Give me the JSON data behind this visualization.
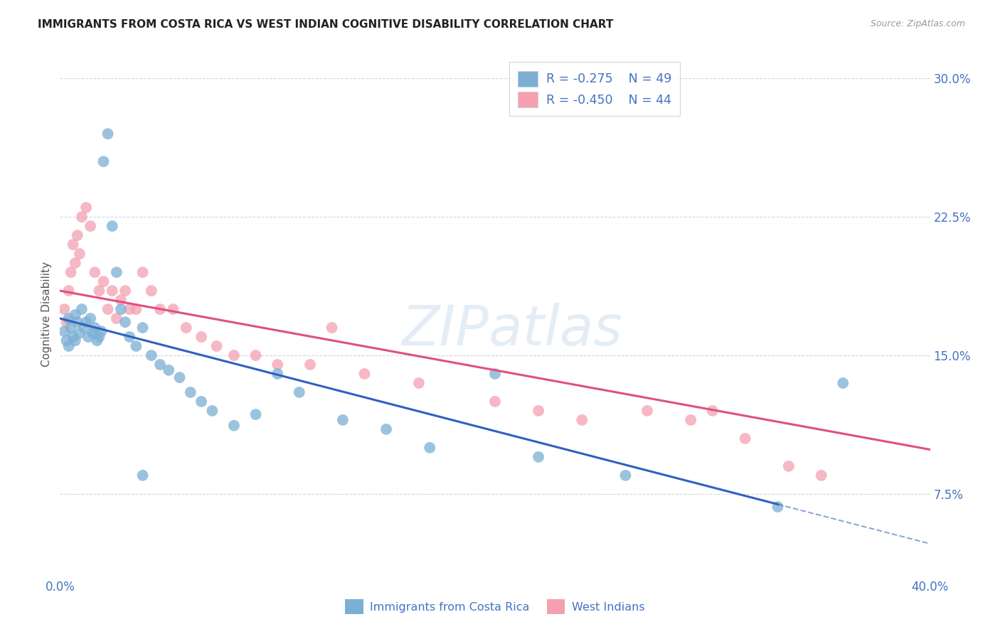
{
  "title": "IMMIGRANTS FROM COSTA RICA VS WEST INDIAN COGNITIVE DISABILITY CORRELATION CHART",
  "source": "Source: ZipAtlas.com",
  "ylabel": "Cognitive Disability",
  "xlim": [
    0.0,
    0.4
  ],
  "ylim": [
    0.03,
    0.315
  ],
  "yticks": [
    0.075,
    0.15,
    0.225,
    0.3
  ],
  "ytick_labels": [
    "7.5%",
    "15.0%",
    "22.5%",
    "30.0%"
  ],
  "xticks": [
    0.0,
    0.1,
    0.2,
    0.3,
    0.4
  ],
  "xtick_labels": [
    "0.0%",
    "",
    "",
    "",
    "40.0%"
  ],
  "legend_r_blue": "-0.275",
  "legend_n_blue": "49",
  "legend_r_pink": "-0.450",
  "legend_n_pink": "44",
  "blue_color": "#7bafd4",
  "pink_color": "#f4a0b0",
  "line_blue": "#3060c0",
  "line_pink": "#e05080",
  "blue_scatter_x": [
    0.002,
    0.003,
    0.004,
    0.004,
    0.005,
    0.006,
    0.007,
    0.007,
    0.008,
    0.009,
    0.01,
    0.011,
    0.012,
    0.013,
    0.014,
    0.015,
    0.016,
    0.017,
    0.018,
    0.019,
    0.02,
    0.022,
    0.024,
    0.026,
    0.028,
    0.03,
    0.032,
    0.035,
    0.038,
    0.042,
    0.046,
    0.05,
    0.055,
    0.06,
    0.065,
    0.07,
    0.08,
    0.09,
    0.1,
    0.11,
    0.13,
    0.15,
    0.17,
    0.2,
    0.22,
    0.26,
    0.33,
    0.36,
    0.038
  ],
  "blue_scatter_y": [
    0.163,
    0.158,
    0.17,
    0.155,
    0.165,
    0.16,
    0.172,
    0.158,
    0.168,
    0.162,
    0.175,
    0.165,
    0.168,
    0.16,
    0.17,
    0.162,
    0.165,
    0.158,
    0.16,
    0.163,
    0.255,
    0.27,
    0.22,
    0.195,
    0.175,
    0.168,
    0.16,
    0.155,
    0.165,
    0.15,
    0.145,
    0.142,
    0.138,
    0.13,
    0.125,
    0.12,
    0.112,
    0.118,
    0.14,
    0.13,
    0.115,
    0.11,
    0.1,
    0.14,
    0.095,
    0.085,
    0.068,
    0.135,
    0.085
  ],
  "pink_scatter_x": [
    0.002,
    0.003,
    0.004,
    0.005,
    0.006,
    0.007,
    0.008,
    0.009,
    0.01,
    0.012,
    0.014,
    0.016,
    0.018,
    0.02,
    0.022,
    0.024,
    0.026,
    0.028,
    0.03,
    0.032,
    0.035,
    0.038,
    0.042,
    0.046,
    0.052,
    0.058,
    0.065,
    0.072,
    0.08,
    0.09,
    0.1,
    0.115,
    0.125,
    0.14,
    0.165,
    0.2,
    0.22,
    0.24,
    0.27,
    0.29,
    0.3,
    0.315,
    0.335,
    0.35
  ],
  "pink_scatter_y": [
    0.175,
    0.168,
    0.185,
    0.195,
    0.21,
    0.2,
    0.215,
    0.205,
    0.225,
    0.23,
    0.22,
    0.195,
    0.185,
    0.19,
    0.175,
    0.185,
    0.17,
    0.18,
    0.185,
    0.175,
    0.175,
    0.195,
    0.185,
    0.175,
    0.175,
    0.165,
    0.16,
    0.155,
    0.15,
    0.15,
    0.145,
    0.145,
    0.165,
    0.14,
    0.135,
    0.125,
    0.12,
    0.115,
    0.12,
    0.115,
    0.12,
    0.105,
    0.09,
    0.085
  ],
  "blue_line_x0": 0.0,
  "blue_line_x_solid_end": 0.33,
  "blue_line_x_dash_end": 0.4,
  "blue_line_y0": 0.17,
  "blue_line_slope": -0.305,
  "pink_line_y0": 0.185,
  "pink_line_slope": -0.215,
  "pink_line_x_end": 0.4,
  "background_color": "#ffffff",
  "grid_color": "#d8d8d8",
  "axis_color": "#4472c4",
  "title_color": "#222222",
  "source_color": "#999999"
}
